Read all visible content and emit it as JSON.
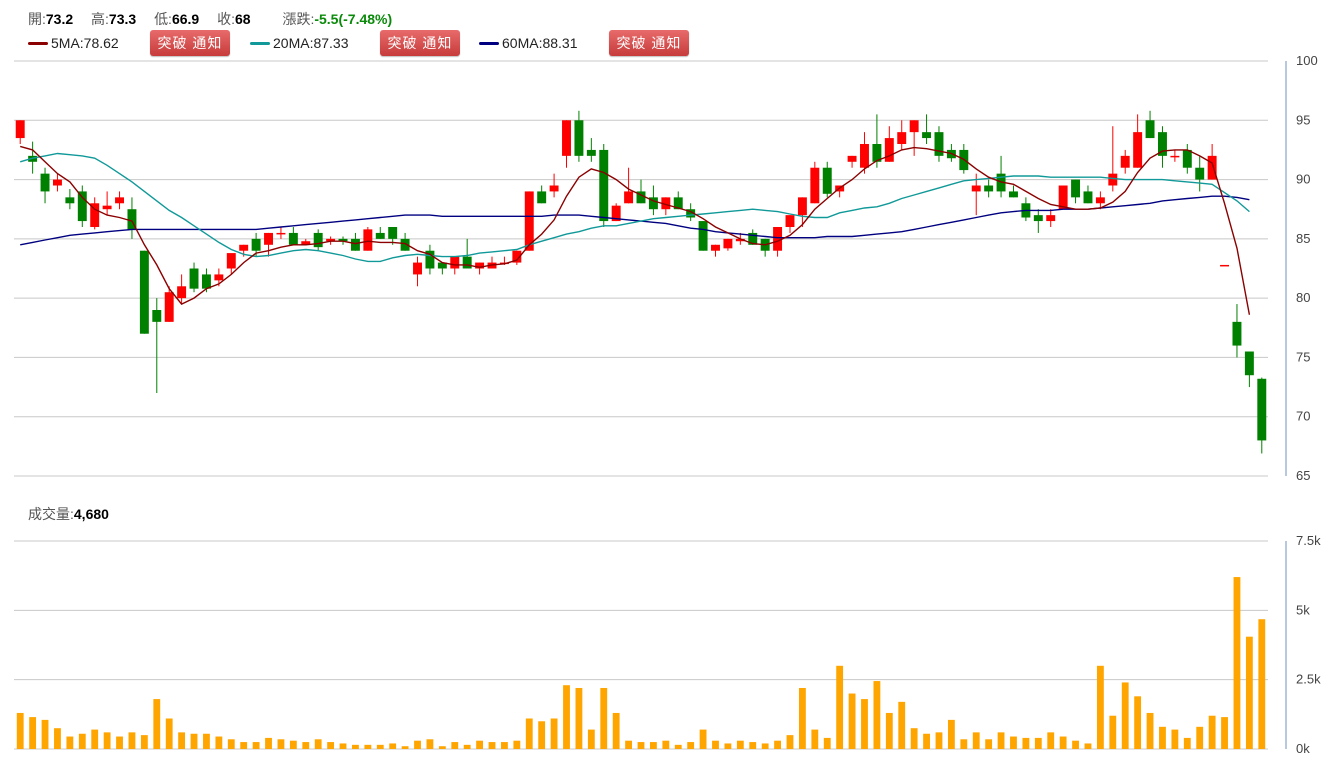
{
  "quote": {
    "open_label": "開:",
    "open": "73.2",
    "high_label": "高:",
    "high": "73.3",
    "low_label": "低:",
    "low": "66.9",
    "close_label": "收:",
    "close": "68",
    "change_label": "漲跌:",
    "change": "-5.5(-7.48%)"
  },
  "ma": [
    {
      "label": "5MA:78.62",
      "color": "#8b0000"
    },
    {
      "label": "20MA:87.33",
      "color": "#119999"
    },
    {
      "label": "60MA:88.31",
      "color": "#000080"
    }
  ],
  "notify_button_label": "突破 通知",
  "volume": {
    "label": "成交量:",
    "value": "4,680"
  },
  "colors": {
    "up": "#ff0000",
    "down": "#008000",
    "volume": "#ffa500"
  },
  "chart_data": [
    {
      "type": "candlestick",
      "ylim": [
        65,
        100
      ],
      "yticks": [
        "65",
        "70",
        "75",
        "80",
        "85",
        "90",
        "95",
        "100"
      ],
      "ohlc": [
        [
          93.5,
          95.0,
          93.0,
          95.0
        ],
        [
          92.0,
          93.2,
          90.5,
          91.5
        ],
        [
          90.5,
          91.0,
          88.0,
          89.0
        ],
        [
          89.5,
          90.5,
          89.0,
          90.0
        ],
        [
          88.5,
          89.2,
          87.5,
          88.0
        ],
        [
          89.0,
          89.5,
          86.0,
          86.5
        ],
        [
          86.0,
          88.5,
          85.8,
          88.0
        ],
        [
          87.5,
          89.0,
          87.0,
          87.8
        ],
        [
          88.0,
          89.0,
          87.5,
          88.5
        ],
        [
          87.5,
          88.5,
          85.0,
          85.8
        ],
        [
          84.0,
          84.0,
          77.0,
          77.0
        ],
        [
          79.0,
          80.0,
          72.0,
          78.0
        ],
        [
          78.0,
          81.0,
          78.0,
          80.5
        ],
        [
          80.0,
          82.0,
          79.5,
          81.0
        ],
        [
          82.5,
          83.0,
          80.5,
          80.8
        ],
        [
          82.0,
          82.5,
          80.5,
          80.8
        ],
        [
          81.5,
          82.5,
          81.0,
          82.0
        ],
        [
          82.5,
          83.5,
          82.0,
          83.8
        ],
        [
          84.0,
          84.5,
          83.5,
          84.5
        ],
        [
          85.0,
          85.5,
          83.5,
          84.0
        ],
        [
          84.5,
          85.5,
          83.5,
          85.5
        ],
        [
          85.5,
          86.0,
          85.0,
          85.5
        ],
        [
          85.5,
          86.0,
          84.5,
          84.5
        ],
        [
          84.5,
          85.0,
          84.5,
          84.8
        ],
        [
          85.5,
          85.8,
          84.0,
          84.3
        ],
        [
          84.8,
          85.2,
          84.5,
          85.0
        ],
        [
          85.0,
          85.2,
          84.5,
          84.8
        ],
        [
          85.0,
          85.5,
          84.0,
          84.0
        ],
        [
          84.0,
          86.0,
          84.0,
          85.8
        ],
        [
          85.5,
          86.0,
          85.0,
          85.0
        ],
        [
          86.0,
          86.0,
          84.5,
          85.0
        ],
        [
          85.0,
          85.5,
          84.0,
          84.0
        ],
        [
          82.0,
          83.5,
          81.0,
          83.0
        ],
        [
          84.0,
          84.5,
          82.0,
          82.5
        ],
        [
          83.0,
          83.0,
          82.0,
          82.5
        ],
        [
          82.5,
          83.5,
          82.0,
          83.5
        ],
        [
          83.5,
          85.0,
          82.5,
          82.5
        ],
        [
          82.5,
          83.0,
          82.0,
          83.0
        ],
        [
          82.5,
          83.5,
          82.5,
          83.0
        ],
        [
          83.0,
          83.5,
          82.8,
          83.0
        ],
        [
          83.0,
          84.0,
          82.8,
          84.0
        ],
        [
          84.0,
          89.0,
          84.0,
          89.0
        ],
        [
          89.0,
          89.5,
          88.0,
          88.0
        ],
        [
          89.0,
          90.5,
          88.5,
          89.5
        ],
        [
          92.0,
          95.0,
          91.0,
          95.0
        ],
        [
          95.0,
          95.8,
          91.5,
          92.0
        ],
        [
          92.5,
          93.5,
          91.5,
          92.0
        ],
        [
          92.5,
          93.0,
          86.0,
          86.5
        ],
        [
          86.5,
          88.0,
          86.5,
          87.8
        ],
        [
          88.0,
          91.0,
          88.0,
          89.0
        ],
        [
          89.0,
          90.0,
          88.0,
          88.0
        ],
        [
          88.5,
          89.5,
          87.0,
          87.5
        ],
        [
          87.5,
          88.5,
          87.0,
          88.5
        ],
        [
          88.5,
          89.0,
          87.5,
          87.5
        ],
        [
          87.5,
          88.0,
          86.5,
          86.8
        ],
        [
          86.5,
          86.5,
          84.0,
          84.0
        ],
        [
          84.0,
          84.5,
          83.5,
          84.5
        ],
        [
          84.2,
          85.0,
          84.0,
          85.0
        ],
        [
          84.8,
          85.5,
          84.5,
          85.0
        ],
        [
          85.5,
          85.8,
          84.5,
          84.5
        ],
        [
          85.0,
          85.0,
          83.5,
          84.0
        ],
        [
          84.0,
          86.0,
          83.5,
          86.0
        ],
        [
          86.0,
          87.0,
          85.5,
          87.0
        ],
        [
          87.0,
          88.5,
          86.0,
          88.5
        ],
        [
          88.0,
          91.5,
          88.0,
          91.0
        ],
        [
          91.0,
          91.5,
          88.5,
          88.8
        ],
        [
          89.0,
          89.5,
          88.5,
          89.5
        ],
        [
          91.5,
          92.0,
          91.0,
          92.0
        ],
        [
          91.0,
          94.0,
          90.5,
          93.0
        ],
        [
          93.0,
          95.5,
          91.0,
          91.5
        ],
        [
          91.5,
          94.5,
          91.5,
          93.5
        ],
        [
          93.0,
          95.0,
          92.5,
          94.0
        ],
        [
          94.0,
          95.0,
          92.0,
          95.0
        ],
        [
          94.0,
          95.5,
          93.0,
          93.5
        ],
        [
          94.0,
          94.5,
          91.5,
          92.0
        ],
        [
          92.5,
          93.0,
          91.5,
          91.8
        ],
        [
          92.5,
          93.0,
          90.5,
          90.8
        ],
        [
          89.0,
          90.5,
          87.0,
          89.5
        ],
        [
          89.5,
          90.0,
          88.5,
          89.0
        ],
        [
          90.5,
          92.0,
          88.5,
          89.0
        ],
        [
          89.0,
          89.5,
          88.5,
          88.5
        ],
        [
          88.0,
          88.5,
          86.5,
          86.8
        ],
        [
          87.0,
          87.5,
          85.5,
          86.5
        ],
        [
          86.5,
          87.5,
          86.0,
          87.0
        ],
        [
          87.5,
          89.5,
          87.5,
          89.5
        ],
        [
          90.0,
          90.0,
          88.0,
          88.5
        ],
        [
          89.0,
          89.5,
          88.0,
          88.0
        ],
        [
          88.0,
          89.0,
          87.5,
          88.5
        ],
        [
          89.5,
          94.5,
          89.0,
          90.5
        ],
        [
          91.0,
          92.5,
          90.5,
          92.0
        ],
        [
          91.0,
          95.5,
          91.0,
          94.0
        ],
        [
          95.0,
          95.8,
          93.5,
          93.5
        ],
        [
          94.0,
          94.5,
          91.0,
          92.0
        ],
        [
          92.0,
          92.5,
          91.5,
          92.0
        ],
        [
          92.5,
          93.0,
          90.5,
          91.0
        ],
        [
          91.0,
          92.0,
          89.0,
          90.0
        ],
        [
          90.0,
          93.0,
          90.0,
          92.0
        ],
        [
          82.8,
          82.8,
          82.8,
          82.8
        ],
        [
          78.0,
          79.5,
          75.0,
          76.0
        ],
        [
          75.5,
          75.5,
          72.5,
          73.5
        ],
        [
          73.2,
          73.3,
          66.9,
          68.0
        ]
      ],
      "ma5": [
        92.8,
        92.5,
        91.5,
        90.5,
        89.8,
        88.5,
        87.5,
        87.0,
        86.8,
        86.5,
        84.5,
        82.8,
        80.8,
        79.5,
        80.0,
        80.8,
        81.2,
        82.0,
        83.0,
        83.8,
        84.0,
        84.3,
        84.5,
        84.5,
        84.6,
        84.8,
        84.8,
        84.6,
        84.8,
        84.7,
        84.7,
        84.6,
        84.0,
        83.7,
        83.0,
        82.8,
        82.8,
        82.6,
        82.8,
        82.9,
        83.2,
        84.5,
        85.4,
        86.6,
        88.6,
        90.2,
        90.9,
        90.6,
        90.0,
        89.2,
        88.7,
        88.2,
        87.9,
        87.6,
        87.3,
        86.7,
        86.0,
        85.5,
        85.0,
        84.6,
        84.5,
        84.8,
        85.3,
        86.2,
        87.5,
        88.4,
        89.3,
        90.0,
        90.9,
        91.6,
        92.0,
        92.5,
        92.7,
        92.6,
        92.4,
        92.2,
        91.7,
        90.9,
        90.2,
        89.8,
        89.6,
        89.0,
        88.4,
        87.9,
        87.7,
        87.5,
        87.5,
        87.6,
        88.1,
        89.0,
        90.6,
        91.8,
        92.4,
        92.5,
        92.5,
        92.0,
        91.4,
        88.0,
        84.2,
        78.6
      ],
      "ma20": [
        91.5,
        91.8,
        92.0,
        92.2,
        92.1,
        92.0,
        91.8,
        91.2,
        90.5,
        89.8,
        89.0,
        88.2,
        87.4,
        86.8,
        86.1,
        85.4,
        84.7,
        84.1,
        83.7,
        83.5,
        83.6,
        83.8,
        84.0,
        84.1,
        84.0,
        83.8,
        83.6,
        83.3,
        83.1,
        83.1,
        83.4,
        83.6,
        83.7,
        83.6,
        83.5,
        83.5,
        83.6,
        83.8,
        83.9,
        84.0,
        84.1,
        84.5,
        84.8,
        85.1,
        85.4,
        85.6,
        85.9,
        86.1,
        86.1,
        86.3,
        86.5,
        86.7,
        86.8,
        86.9,
        87.0,
        87.1,
        87.2,
        87.3,
        87.4,
        87.5,
        87.4,
        87.3,
        87.1,
        86.9,
        86.8,
        86.8,
        87.2,
        87.4,
        87.6,
        87.7,
        88.0,
        88.4,
        88.7,
        89.0,
        89.3,
        89.6,
        89.9,
        90.0,
        90.1,
        90.2,
        90.3,
        90.3,
        90.3,
        90.2,
        90.2,
        90.2,
        90.2,
        90.2,
        90.1,
        90.0,
        90.0,
        90.0,
        90.0,
        89.9,
        89.8,
        89.7,
        89.6,
        88.9,
        88.2,
        87.3
      ],
      "ma60": [
        84.5,
        84.7,
        84.9,
        85.1,
        85.3,
        85.4,
        85.5,
        85.6,
        85.7,
        85.8,
        85.8,
        85.8,
        85.8,
        85.8,
        85.8,
        85.8,
        85.8,
        85.8,
        85.8,
        85.8,
        85.9,
        86.0,
        86.1,
        86.2,
        86.3,
        86.4,
        86.5,
        86.6,
        86.7,
        86.8,
        86.9,
        87.0,
        87.0,
        87.0,
        86.9,
        86.9,
        86.9,
        86.9,
        86.9,
        86.9,
        86.9,
        86.9,
        86.9,
        87.0,
        87.0,
        87.0,
        86.9,
        86.8,
        86.7,
        86.6,
        86.5,
        86.4,
        86.3,
        86.1,
        85.9,
        85.8,
        85.6,
        85.5,
        85.4,
        85.3,
        85.2,
        85.1,
        85.1,
        85.1,
        85.1,
        85.2,
        85.2,
        85.2,
        85.3,
        85.4,
        85.5,
        85.6,
        85.8,
        86.0,
        86.2,
        86.4,
        86.6,
        86.8,
        87.0,
        87.2,
        87.3,
        87.4,
        87.4,
        87.4,
        87.5,
        87.5,
        87.5,
        87.6,
        87.7,
        87.8,
        87.9,
        88.0,
        88.2,
        88.3,
        88.4,
        88.5,
        88.6,
        88.6,
        88.5,
        88.3
      ]
    },
    {
      "type": "bar",
      "ylim": [
        0,
        7500
      ],
      "yticks": [
        "0k",
        "2.5k",
        "5k",
        "7.5k"
      ],
      "values": [
        1300,
        1150,
        1050,
        750,
        450,
        550,
        700,
        600,
        450,
        600,
        500,
        1800,
        1100,
        600,
        550,
        550,
        450,
        350,
        250,
        250,
        400,
        350,
        300,
        250,
        350,
        250,
        200,
        150,
        150,
        150,
        200,
        100,
        300,
        350,
        100,
        250,
        150,
        300,
        250,
        250,
        300,
        1100,
        1000,
        1100,
        2300,
        2200,
        700,
        2200,
        1300,
        300,
        250,
        250,
        300,
        150,
        250,
        700,
        300,
        200,
        300,
        250,
        200,
        300,
        500,
        2200,
        700,
        400,
        3000,
        2000,
        1800,
        2450,
        1300,
        1700,
        750,
        550,
        600,
        1050,
        350,
        600,
        350,
        600,
        450,
        400,
        400,
        600,
        450,
        300,
        200,
        3000,
        1200,
        2400,
        1900,
        1300,
        800,
        700,
        400,
        800,
        1200,
        1150,
        6200,
        4050,
        4680
      ]
    }
  ]
}
